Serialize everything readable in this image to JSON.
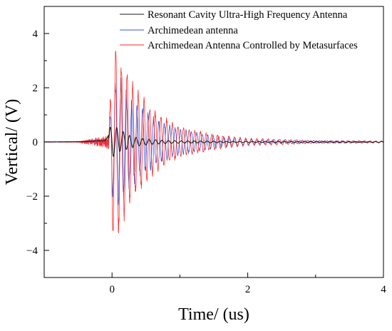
{
  "chart_data": {
    "type": "line",
    "title": "",
    "xlabel": "Time/ (us)",
    "ylabel": "Vertical/ (V)",
    "xlim": [
      -1,
      4
    ],
    "ylim": [
      -5,
      5
    ],
    "xticks": [
      0,
      2,
      4
    ],
    "yticks": [
      -4,
      -2,
      0,
      2,
      4
    ],
    "xtick_labels": [
      "0",
      "2",
      "4"
    ],
    "ytick_labels": [
      "−4",
      "−2",
      "0",
      "2",
      "4"
    ],
    "legend_position": "top-right",
    "grid": false,
    "series": [
      {
        "name": "Resonant Cavity Ultra-High Frequency Antenna",
        "color": "#1a1a1a",
        "onset_us": -0.05,
        "peak_abs_V": 0.9,
        "decay_until_us": 1.2,
        "baseline_V": 0.0,
        "x_sample": [
          -1.0,
          -0.5,
          -0.1,
          0.0,
          0.1,
          0.2,
          0.4,
          0.6,
          0.8,
          1.0,
          1.5,
          2.0,
          3.0,
          4.0
        ],
        "y_envelope": [
          0.0,
          0.02,
          0.1,
          0.9,
          0.6,
          0.4,
          0.2,
          0.12,
          0.08,
          0.06,
          0.04,
          0.03,
          0.02,
          0.02
        ]
      },
      {
        "name": "Archimedean antenna",
        "color": "#3a56d6",
        "onset_us": -0.05,
        "peak_abs_V": 2.6,
        "decay_until_us": 2.5,
        "baseline_V": 0.0,
        "x_sample": [
          -1.0,
          -0.5,
          -0.05,
          0.0,
          0.1,
          0.2,
          0.4,
          0.6,
          0.8,
          1.0,
          1.5,
          2.0,
          3.0,
          4.0
        ],
        "y_envelope": [
          0.02,
          0.02,
          0.3,
          2.2,
          2.6,
          2.0,
          1.4,
          1.0,
          0.7,
          0.5,
          0.25,
          0.1,
          0.05,
          0.03
        ]
      },
      {
        "name": "Archimedean Antenna Controlled by Metasurfaces",
        "color": "#ff2a2a",
        "onset_us": -0.05,
        "peak_abs_V": 4.0,
        "decay_until_us": 2.5,
        "baseline_V": 0.0,
        "x_sample": [
          -1.0,
          -0.5,
          -0.05,
          0.0,
          0.05,
          0.1,
          0.2,
          0.4,
          0.6,
          0.8,
          1.0,
          1.5,
          2.0,
          3.0,
          4.0
        ],
        "y_envelope": [
          0.03,
          0.03,
          0.5,
          3.4,
          4.0,
          3.6,
          2.8,
          1.9,
          1.3,
          0.9,
          0.6,
          0.3,
          0.15,
          0.06,
          0.04
        ]
      }
    ]
  }
}
